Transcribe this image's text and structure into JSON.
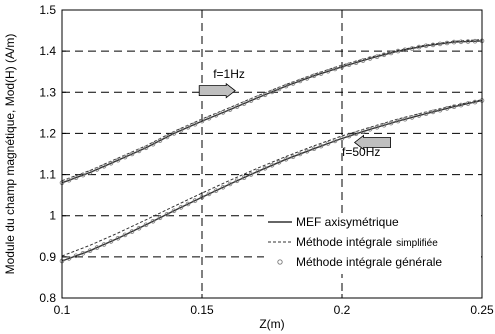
{
  "chart_data": {
    "type": "line",
    "xlabel": "Z(m)",
    "ylabel": "Module du champ magnétique, Mod(H) (A/m)",
    "xlim": [
      0.1,
      0.25
    ],
    "ylim": [
      0.8,
      1.5
    ],
    "x_ticks": [
      "0.1",
      "0.15",
      "0.2",
      "0.25"
    ],
    "y_ticks": [
      "0.8",
      "0.9",
      "1",
      "1.1",
      "1.2",
      "1.3",
      "1.4",
      "1.5"
    ],
    "grid": true,
    "legend_position": "bottom-right",
    "legend": [
      {
        "label": "MEF axisymétrique",
        "style": "solid"
      },
      {
        "label": "Méthode intégrale",
        "suffix": "simplifiée",
        "style": "dashed"
      },
      {
        "label": "Méthode intégrale générale",
        "style": "circle-markers"
      }
    ],
    "annotations": [
      {
        "text": "f=1Hz",
        "arrow": "right",
        "x": 0.18,
        "y": 1.32
      },
      {
        "text": "f=50Hz",
        "arrow": "left",
        "x": 0.21,
        "y": 1.19
      }
    ],
    "series": [
      {
        "group": "f=1Hz",
        "style": "solid",
        "x": [
          0.1,
          0.11,
          0.12,
          0.13,
          0.14,
          0.15,
          0.16,
          0.17,
          0.18,
          0.19,
          0.2,
          0.21,
          0.22,
          0.23,
          0.24,
          0.25
        ],
        "values": [
          1.08,
          1.105,
          1.135,
          1.165,
          1.2,
          1.23,
          1.258,
          1.287,
          1.315,
          1.34,
          1.362,
          1.382,
          1.4,
          1.413,
          1.422,
          1.425
        ]
      },
      {
        "group": "f=1Hz",
        "style": "dashed",
        "x": [
          0.1,
          0.11,
          0.12,
          0.13,
          0.14,
          0.15,
          0.16,
          0.17,
          0.18,
          0.19,
          0.2,
          0.21,
          0.22,
          0.23,
          0.24,
          0.25
        ],
        "values": [
          1.085,
          1.11,
          1.14,
          1.17,
          1.205,
          1.235,
          1.263,
          1.292,
          1.319,
          1.344,
          1.366,
          1.385,
          1.402,
          1.415,
          1.424,
          1.428
        ]
      },
      {
        "group": "f=1Hz",
        "style": "circles",
        "x": [
          0.1,
          0.11,
          0.12,
          0.13,
          0.14,
          0.15,
          0.16,
          0.17,
          0.18,
          0.19,
          0.2,
          0.21,
          0.22,
          0.23,
          0.24,
          0.25
        ],
        "values": [
          1.08,
          1.105,
          1.135,
          1.165,
          1.2,
          1.23,
          1.258,
          1.287,
          1.315,
          1.34,
          1.362,
          1.382,
          1.4,
          1.413,
          1.422,
          1.425
        ]
      },
      {
        "group": "f=50Hz",
        "style": "solid",
        "x": [
          0.1,
          0.11,
          0.12,
          0.13,
          0.14,
          0.15,
          0.16,
          0.17,
          0.18,
          0.19,
          0.2,
          0.21,
          0.22,
          0.23,
          0.24,
          0.25
        ],
        "values": [
          0.89,
          0.915,
          0.945,
          0.978,
          1.012,
          1.045,
          1.077,
          1.108,
          1.137,
          1.163,
          1.188,
          1.21,
          1.23,
          1.248,
          1.265,
          1.28
        ]
      },
      {
        "group": "f=50Hz",
        "style": "dashed",
        "x": [
          0.1,
          0.11,
          0.12,
          0.13,
          0.14,
          0.15,
          0.16,
          0.17,
          0.18,
          0.19,
          0.2,
          0.21,
          0.22,
          0.23,
          0.24,
          0.25
        ],
        "values": [
          0.902,
          0.928,
          0.958,
          0.99,
          1.023,
          1.055,
          1.086,
          1.116,
          1.144,
          1.17,
          1.194,
          1.215,
          1.235,
          1.252,
          1.268,
          1.282
        ]
      },
      {
        "group": "f=50Hz",
        "style": "circles",
        "x": [
          0.1,
          0.11,
          0.12,
          0.13,
          0.14,
          0.15,
          0.16,
          0.17,
          0.18,
          0.19,
          0.2,
          0.21,
          0.22,
          0.23,
          0.24,
          0.25
        ],
        "values": [
          0.89,
          0.915,
          0.945,
          0.978,
          1.012,
          1.045,
          1.077,
          1.108,
          1.137,
          1.163,
          1.188,
          1.21,
          1.23,
          1.248,
          1.265,
          1.28
        ]
      }
    ]
  },
  "colors": {
    "axes": "#000000",
    "grid": "#000000",
    "line": "#333333",
    "arrow_fill": "#bfbfbf",
    "markers": "#7a7a7a"
  }
}
